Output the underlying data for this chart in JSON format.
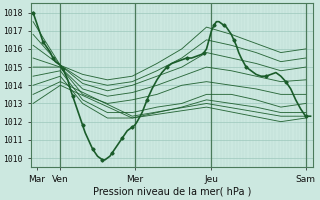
{
  "bg_color": "#cce8e0",
  "grid_color_minor": "#b8d8d0",
  "grid_color_major": "#9dc8bc",
  "line_color": "#1a5c2a",
  "ylim": [
    1009.5,
    1018.5
  ],
  "yticks": [
    1010,
    1011,
    1012,
    1013,
    1014,
    1015,
    1016,
    1017,
    1018
  ],
  "xlim": [
    -0.05,
    5.65
  ],
  "xtick_labels": [
    "Mar",
    "Ven",
    "Mer",
    "Jeu",
    "Sam"
  ],
  "xtick_positions": [
    0.08,
    0.55,
    2.05,
    3.6,
    5.5
  ],
  "vline_positions": [
    0.55,
    2.05,
    3.6,
    5.5
  ],
  "xlabel": "Pression niveau de la mer( hPa )",
  "main_x": [
    0.0,
    0.05,
    0.1,
    0.15,
    0.2,
    0.25,
    0.3,
    0.35,
    0.4,
    0.45,
    0.5,
    0.55,
    0.6,
    0.65,
    0.7,
    0.75,
    0.8,
    0.85,
    0.9,
    0.95,
    1.0,
    1.05,
    1.1,
    1.15,
    1.2,
    1.25,
    1.3,
    1.35,
    1.4,
    1.45,
    1.5,
    1.55,
    1.6,
    1.65,
    1.7,
    1.75,
    1.8,
    1.85,
    1.9,
    1.95,
    2.0,
    2.05,
    2.1,
    2.2,
    2.3,
    2.4,
    2.5,
    2.6,
    2.7,
    2.8,
    2.9,
    3.0,
    3.1,
    3.2,
    3.3,
    3.4,
    3.45,
    3.5,
    3.55,
    3.6,
    3.65,
    3.7,
    3.75,
    3.8,
    3.85,
    3.9,
    3.95,
    4.0,
    4.05,
    4.1,
    4.15,
    4.2,
    4.3,
    4.4,
    4.5,
    4.6,
    4.7,
    4.8,
    4.9,
    5.0,
    5.1,
    5.2,
    5.3,
    5.4,
    5.5,
    5.55,
    5.6
  ],
  "main_p": [
    1018.0,
    1017.6,
    1017.2,
    1016.8,
    1016.4,
    1016.2,
    1016.0,
    1015.8,
    1015.5,
    1015.3,
    1015.2,
    1015.1,
    1014.9,
    1014.6,
    1014.3,
    1013.8,
    1013.4,
    1013.0,
    1012.6,
    1012.2,
    1011.8,
    1011.4,
    1011.1,
    1010.8,
    1010.5,
    1010.3,
    1010.1,
    1010.0,
    1009.9,
    1009.9,
    1010.0,
    1010.1,
    1010.3,
    1010.5,
    1010.7,
    1010.9,
    1011.1,
    1011.3,
    1011.5,
    1011.6,
    1011.7,
    1011.8,
    1012.0,
    1012.5,
    1013.2,
    1013.8,
    1014.3,
    1014.7,
    1015.0,
    1015.2,
    1015.3,
    1015.4,
    1015.5,
    1015.5,
    1015.6,
    1015.7,
    1015.8,
    1016.0,
    1016.5,
    1017.0,
    1017.3,
    1017.5,
    1017.5,
    1017.4,
    1017.3,
    1017.2,
    1017.0,
    1016.8,
    1016.5,
    1016.2,
    1015.8,
    1015.5,
    1015.0,
    1014.8,
    1014.6,
    1014.5,
    1014.5,
    1014.6,
    1014.7,
    1014.5,
    1014.2,
    1013.8,
    1013.2,
    1012.7,
    1012.3,
    1012.3,
    1012.3
  ],
  "ensemble_lines": [
    {
      "x": [
        0.0,
        0.55,
        1.0,
        1.5,
        2.0,
        2.5,
        3.0,
        3.5,
        4.0,
        4.5,
        5.0,
        5.5
      ],
      "p": [
        1017.5,
        1015.1,
        1014.6,
        1014.3,
        1014.5,
        1015.2,
        1016.0,
        1017.2,
        1016.8,
        1016.3,
        1015.8,
        1016.0
      ]
    },
    {
      "x": [
        0.0,
        0.55,
        1.0,
        1.5,
        2.0,
        2.5,
        3.0,
        3.5,
        4.0,
        4.5,
        5.0,
        5.5
      ],
      "p": [
        1016.8,
        1015.1,
        1014.3,
        1014.0,
        1014.2,
        1014.8,
        1015.5,
        1016.5,
        1016.2,
        1015.8,
        1015.3,
        1015.5
      ]
    },
    {
      "x": [
        0.0,
        0.55,
        1.0,
        1.5,
        2.0,
        2.5,
        3.0,
        3.5,
        4.0,
        4.5,
        5.0,
        5.5
      ],
      "p": [
        1016.2,
        1015.1,
        1014.1,
        1013.7,
        1014.0,
        1014.5,
        1015.0,
        1015.8,
        1015.5,
        1015.2,
        1014.8,
        1015.0
      ]
    },
    {
      "x": [
        0.0,
        0.55,
        1.0,
        1.5,
        2.0,
        2.5,
        3.0,
        3.5,
        4.0,
        4.5,
        5.0,
        5.5
      ],
      "p": [
        1015.5,
        1015.0,
        1013.8,
        1013.4,
        1013.6,
        1014.0,
        1014.5,
        1015.0,
        1014.8,
        1014.5,
        1014.2,
        1014.3
      ]
    },
    {
      "x": [
        0.0,
        0.55,
        1.0,
        1.5,
        2.0,
        2.5,
        3.0,
        3.5,
        4.0,
        4.5,
        5.0,
        5.5
      ],
      "p": [
        1015.0,
        1015.0,
        1013.5,
        1013.0,
        1013.2,
        1013.5,
        1014.0,
        1014.2,
        1014.0,
        1013.8,
        1013.5,
        1013.5
      ]
    },
    {
      "x": [
        0.0,
        0.55,
        1.0,
        1.5,
        2.0,
        2.5,
        3.0,
        3.5,
        4.0,
        4.5,
        5.0,
        5.5
      ],
      "p": [
        1014.5,
        1014.8,
        1013.2,
        1012.5,
        1012.5,
        1012.8,
        1013.0,
        1013.5,
        1013.5,
        1013.2,
        1012.8,
        1013.0
      ]
    },
    {
      "x": [
        0.0,
        0.55,
        1.0,
        1.5,
        2.0,
        2.5,
        3.0,
        3.5,
        4.0,
        4.5,
        5.0,
        5.5
      ],
      "p": [
        1014.0,
        1014.5,
        1013.0,
        1012.2,
        1012.2,
        1012.5,
        1012.8,
        1013.2,
        1013.0,
        1012.8,
        1012.5,
        1012.5
      ]
    },
    {
      "x": [
        0.0,
        0.55,
        2.0,
        3.5,
        5.0,
        5.5
      ],
      "p": [
        1013.5,
        1014.2,
        1012.3,
        1013.0,
        1012.3,
        1012.3
      ]
    },
    {
      "x": [
        0.0,
        0.55,
        2.0,
        3.5,
        5.0,
        5.5
      ],
      "p": [
        1013.0,
        1014.0,
        1012.2,
        1012.8,
        1012.0,
        1012.2
      ]
    }
  ]
}
